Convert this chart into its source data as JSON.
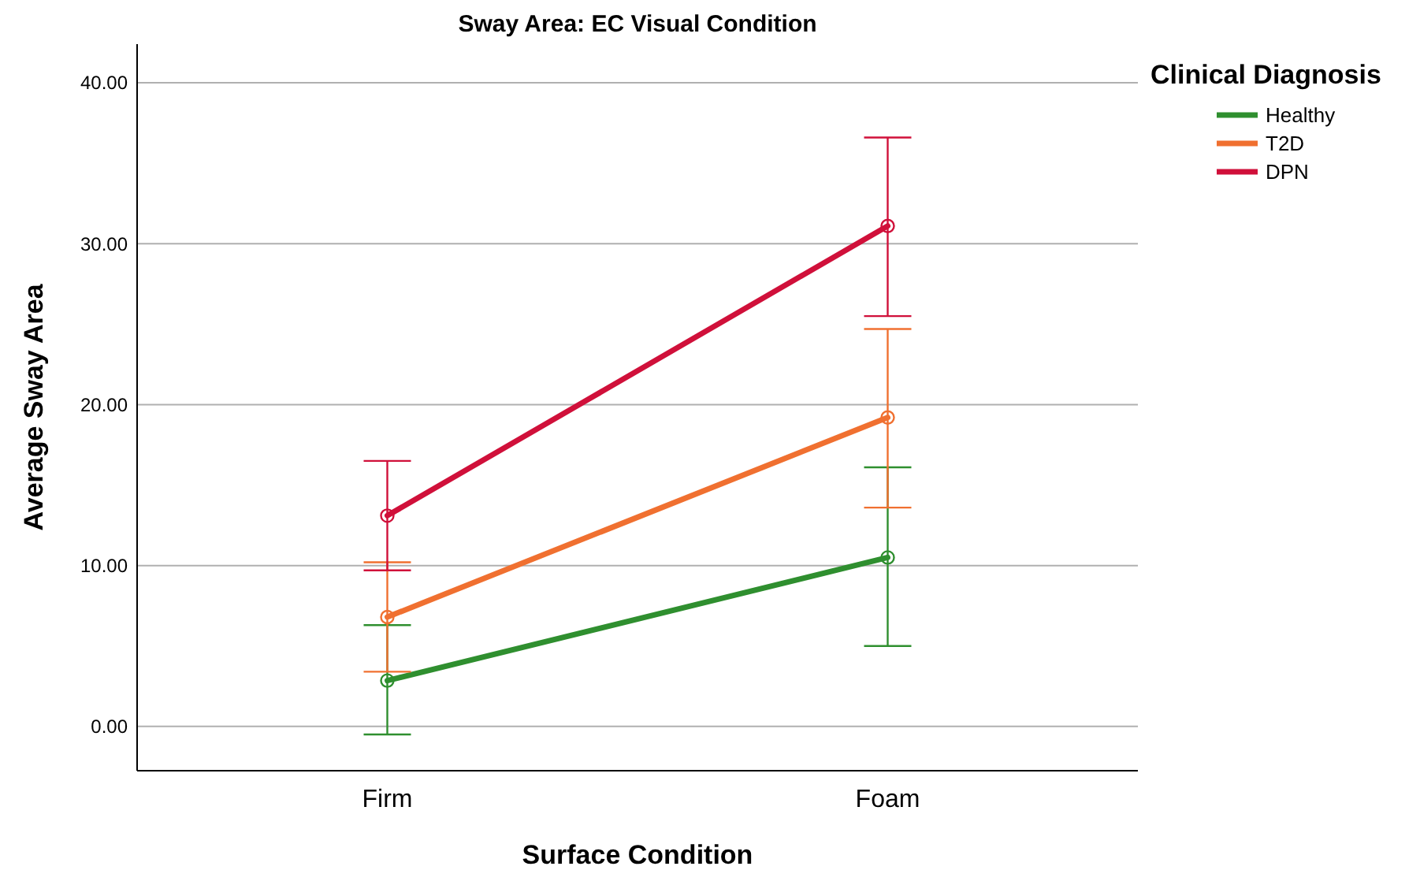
{
  "chart_data": {
    "type": "line",
    "title": "Sway Area: EC Visual Condition",
    "xlabel": "Surface Condition",
    "ylabel": "Average Sway Area",
    "legend_title": "Clinical Diagnosis",
    "categories": [
      "Firm",
      "Foam"
    ],
    "series": [
      {
        "name": "Healthy",
        "color": "#2f8f2f",
        "values": [
          2.85,
          10.5
        ],
        "errors": [
          [
            -0.5,
            6.3
          ],
          [
            5.0,
            16.1
          ]
        ]
      },
      {
        "name": "T2D",
        "color": "#f07030",
        "values": [
          6.8,
          19.2
        ],
        "errors": [
          [
            3.4,
            10.2
          ],
          [
            13.6,
            24.7
          ]
        ]
      },
      {
        "name": "DPN",
        "color": "#d0103a",
        "values": [
          13.1,
          31.1
        ],
        "errors": [
          [
            9.7,
            16.5
          ],
          [
            25.5,
            36.6
          ]
        ]
      }
    ],
    "ylim": [
      -2.75,
      42.4
    ],
    "yticks": [
      {
        "value": 0,
        "label": "0.00"
      },
      {
        "value": 10,
        "label": "10.00"
      },
      {
        "value": 20,
        "label": "20.00"
      },
      {
        "value": 30,
        "label": "30.00"
      },
      {
        "value": 40,
        "label": "40.00"
      }
    ],
    "grid": "y",
    "legend": "top right",
    "marker": "circle",
    "line_style": "solid"
  }
}
